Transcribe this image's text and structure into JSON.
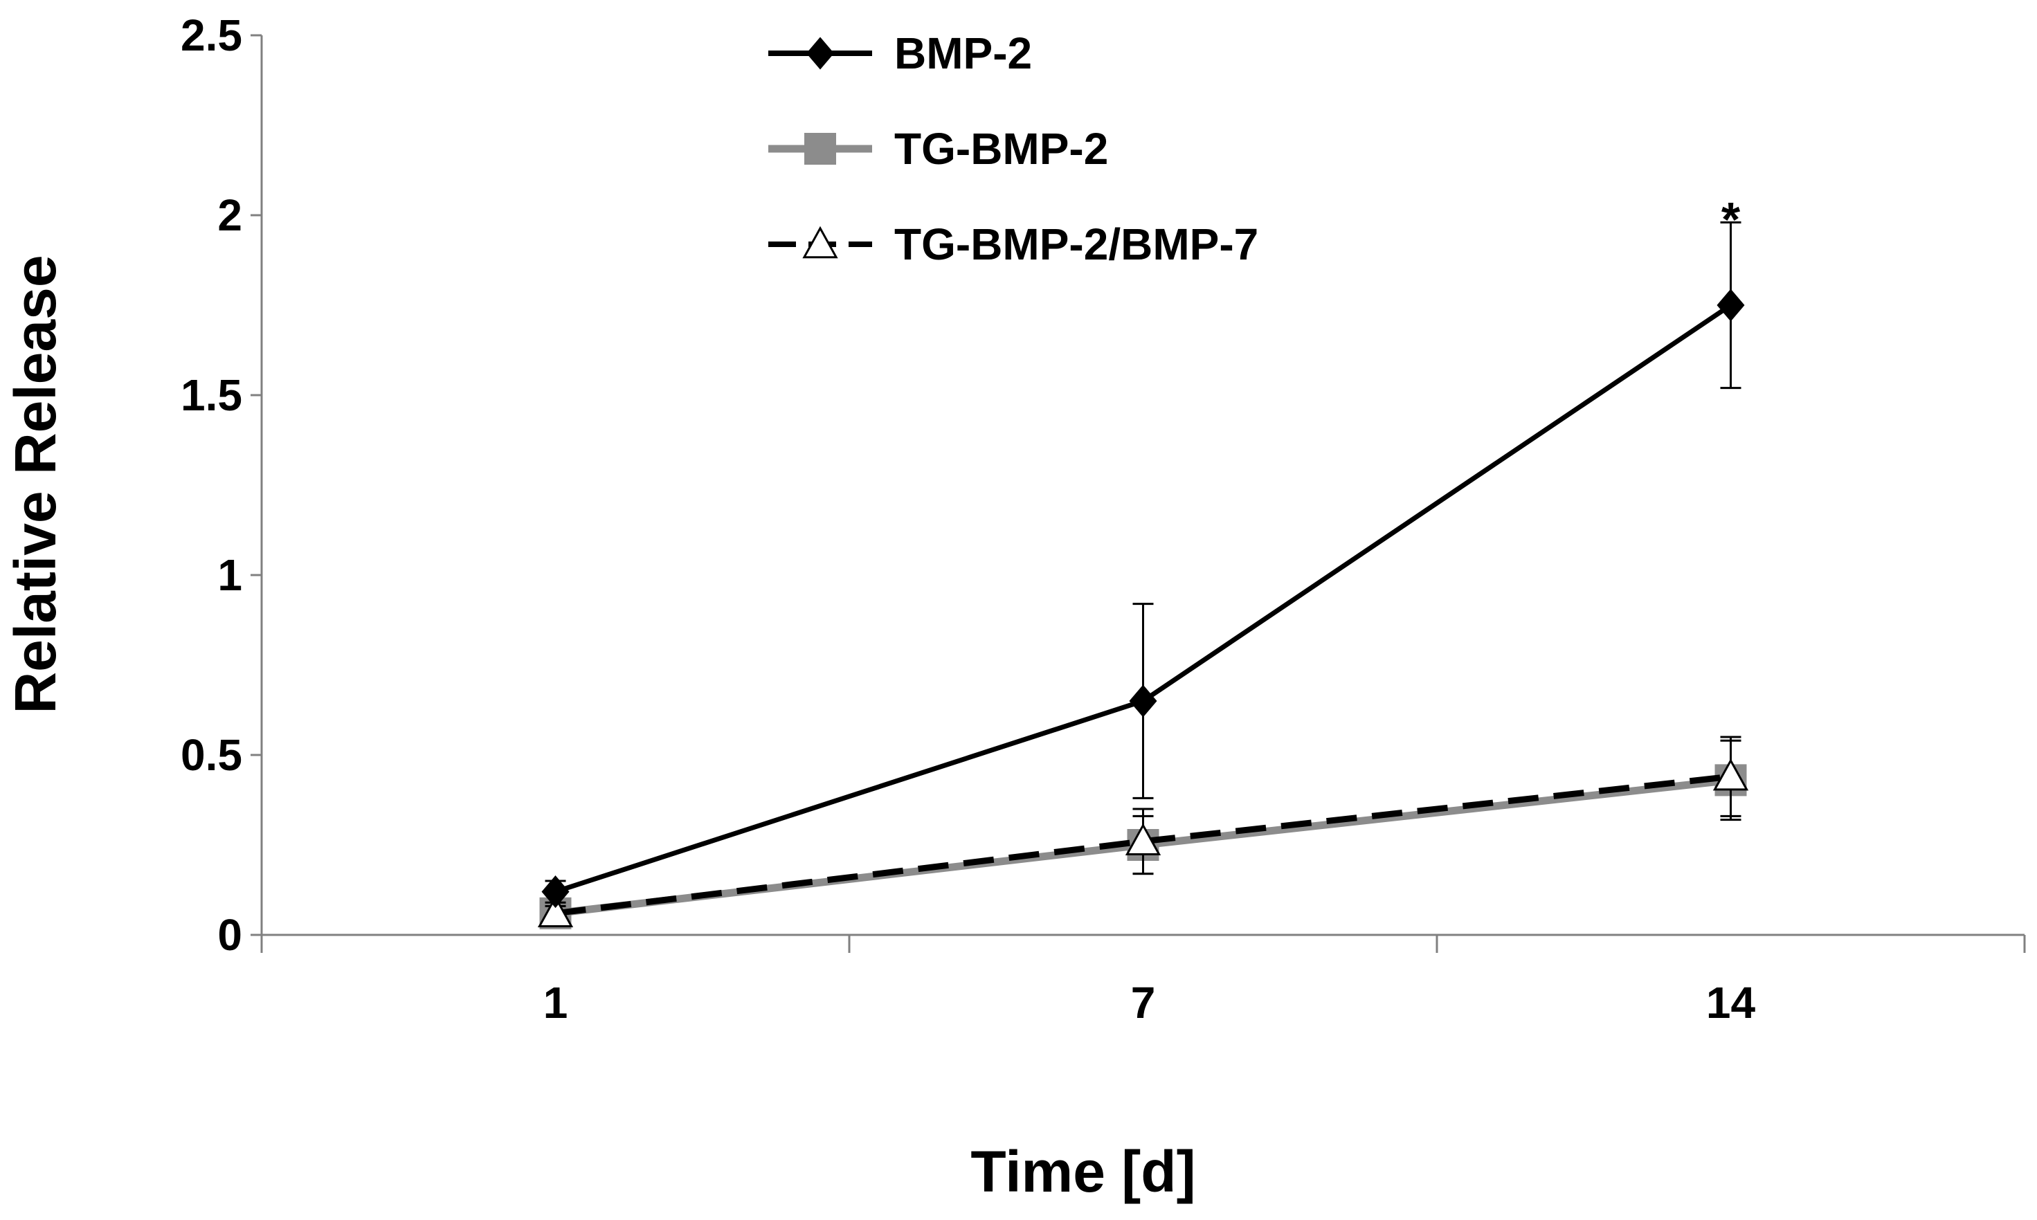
{
  "chart_data": {
    "type": "line",
    "xlabel": "Time [d]",
    "ylabel": "Relative Release",
    "categories": [
      "1",
      "7",
      "14"
    ],
    "ylim": [
      0,
      2.5
    ],
    "yticks": [
      "0",
      "0.5",
      "1",
      "1.5",
      "2",
      "2.5"
    ],
    "grid": false,
    "legend_position": "top-center",
    "series": [
      {
        "name": "BMP-2",
        "values": [
          0.12,
          0.65,
          1.75
        ],
        "errors": [
          0.03,
          0.27,
          0.23
        ],
        "color": "#000000",
        "marker": "diamond",
        "line_style": "solid"
      },
      {
        "name": "TG-BMP-2",
        "values": [
          0.06,
          0.25,
          0.43
        ],
        "errors": [
          0.02,
          0.08,
          0.11
        ],
        "color": "#8c8c8c",
        "marker": "square",
        "line_style": "solid"
      },
      {
        "name": "TG-BMP-2/BMP-7",
        "values": [
          0.06,
          0.26,
          0.44
        ],
        "errors": [
          0.02,
          0.09,
          0.11
        ],
        "color": "#000000",
        "marker": "triangle-open",
        "line_style": "dashed"
      }
    ],
    "annotations": [
      {
        "text": "*",
        "category": "14",
        "value": 2.0
      }
    ]
  }
}
